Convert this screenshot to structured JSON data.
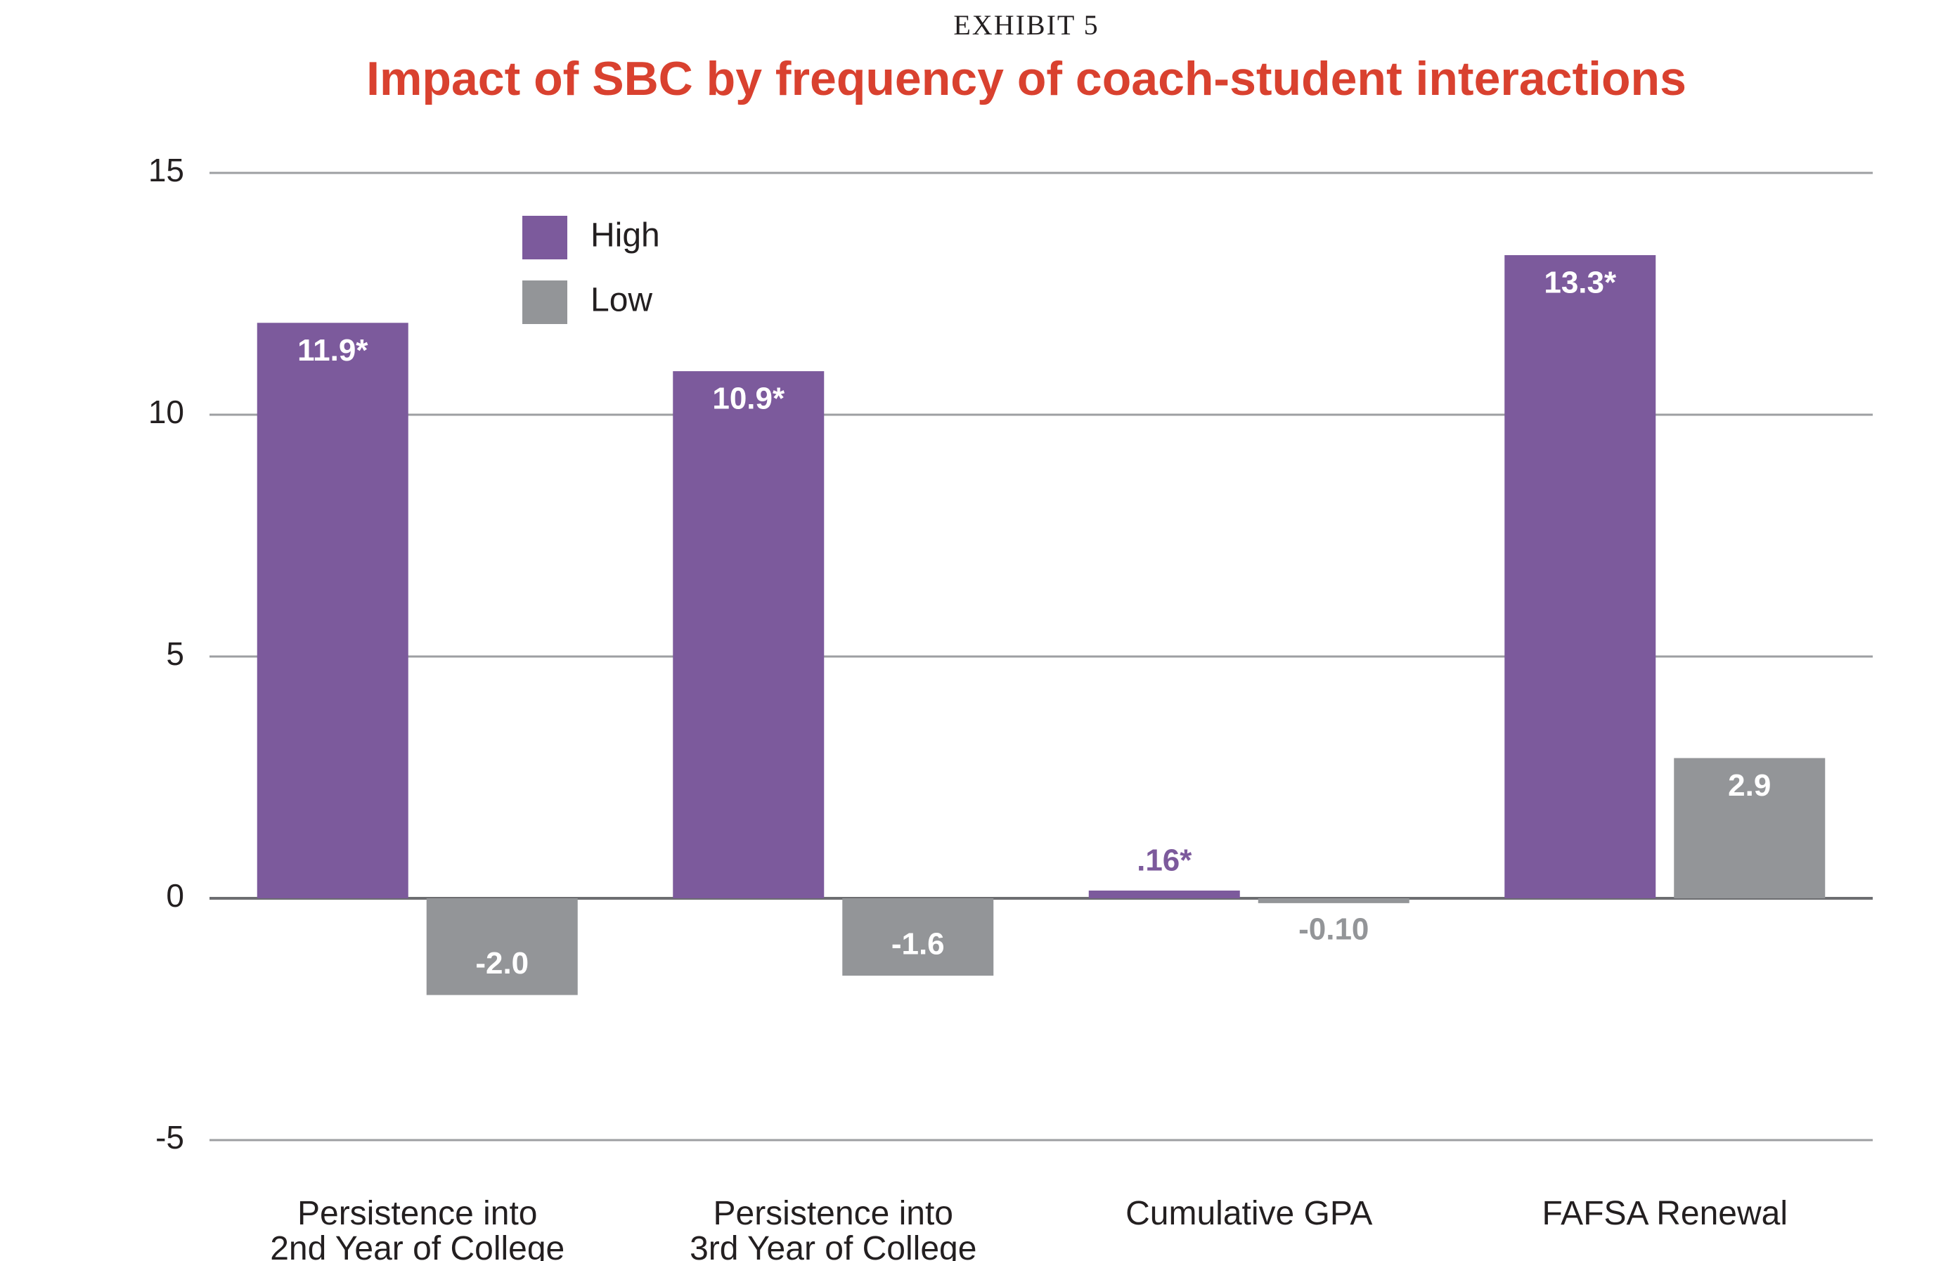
{
  "chart_data": {
    "type": "bar",
    "kicker": "EXHIBIT 5",
    "title": "Impact of SBC by frequency of coach-student interactions",
    "categories": [
      "Persistence into\n2nd Year of College",
      "Persistence into\n3rd Year of College",
      "Cumulative GPA",
      "FAFSA Renewal"
    ],
    "series": [
      {
        "name": "High",
        "color": "#7c5a9c",
        "values": [
          11.9,
          10.9,
          0.16,
          13.3
        ],
        "value_labels": [
          "11.9*",
          "10.9*",
          ".16*",
          "13.3*"
        ]
      },
      {
        "name": "Low",
        "color": "#939598",
        "values": [
          -2.0,
          -1.6,
          -0.1,
          2.9
        ],
        "value_labels": [
          "-2.0",
          "-1.6",
          "-0.10",
          "2.9"
        ]
      }
    ],
    "ylim": [
      -5,
      15
    ],
    "yticks": [
      -5,
      0,
      5,
      10,
      15
    ],
    "grid": true,
    "legend": "upper left"
  }
}
